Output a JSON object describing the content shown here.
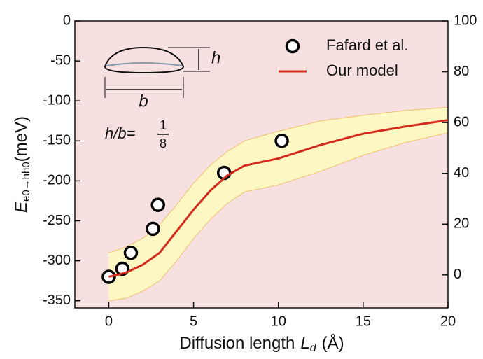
{
  "chart_data": {
    "type": "line",
    "ylabel": {
      "main": "E",
      "subscript": "e0→hh0",
      "unit": "(meV)"
    },
    "xlabel": {
      "text": "Diffusion length",
      "symbol": "L",
      "subscript": "d",
      "unit": "(Å)"
    },
    "xlim": [
      -2,
      20
    ],
    "xticks": [
      0,
      5,
      10,
      15,
      20
    ],
    "ylim": [
      -359,
      0
    ],
    "yticks": [
      0,
      -50,
      -100,
      -150,
      -200,
      -250,
      -300,
      -350
    ],
    "y2lim": [
      -13,
      100
    ],
    "y2ticks": [
      0,
      20,
      40,
      60,
      80,
      100
    ],
    "background": "#f6e0e0",
    "series": [
      {
        "name": "Fafard et al.",
        "type": "scatter",
        "color": "#000000",
        "x": [
          0,
          0.8,
          1.3,
          2.6,
          2.9,
          6.8,
          10.2
        ],
        "values": [
          -320,
          -310,
          -290,
          -260,
          -230,
          -190,
          -150
        ]
      },
      {
        "name": "Our model",
        "type": "line",
        "color": "#d42a1c",
        "x": [
          0,
          1,
          2,
          3,
          4,
          5,
          6,
          7,
          8,
          10,
          12.5,
          15,
          17.5,
          20
        ],
        "values": [
          -320,
          -315,
          -305,
          -290,
          -263,
          -236,
          -212,
          -193,
          -181,
          -172,
          -155,
          -141,
          -132,
          -124
        ]
      }
    ],
    "band": {
      "color": "#fdf7c4",
      "edge": "#f0c070",
      "x": [
        0,
        1,
        2,
        3,
        4,
        5,
        6,
        7,
        8,
        10,
        12.5,
        15,
        17.5,
        20
      ],
      "upper": [
        -290,
        -283,
        -272,
        -255,
        -230,
        -203,
        -180,
        -163,
        -150,
        -138,
        -125,
        -118,
        -112,
        -108
      ],
      "lower": [
        -350,
        -347,
        -338,
        -325,
        -300,
        -272,
        -248,
        -228,
        -214,
        -205,
        -188,
        -168,
        -152,
        -140
      ]
    },
    "inset": {
      "h": "h",
      "b": "b",
      "ratio_label": "h/b=",
      "numerator": "1",
      "denominator": "8"
    }
  }
}
